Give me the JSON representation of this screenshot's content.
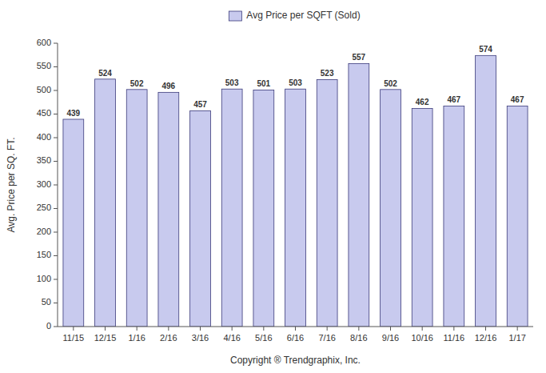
{
  "chart_data": {
    "type": "bar",
    "categories": [
      "11/15",
      "12/15",
      "1/16",
      "2/16",
      "3/16",
      "4/16",
      "5/16",
      "6/16",
      "7/16",
      "8/16",
      "9/16",
      "10/16",
      "11/16",
      "12/16",
      "1/17"
    ],
    "series": [
      {
        "name": "Avg Price per SQFT (Sold)",
        "color": "#c8caee",
        "values": [
          439,
          524,
          502,
          496,
          457,
          503,
          501,
          503,
          523,
          557,
          502,
          462,
          467,
          574,
          467
        ]
      }
    ],
    "xlabel": "Copyright ® Trendgraphix, Inc.",
    "ylabel": "Avg. Price per SQ. FT.",
    "ylim": [
      0,
      600
    ],
    "yticks": [
      0,
      50,
      100,
      150,
      200,
      250,
      300,
      350,
      400,
      450,
      500,
      550,
      600
    ],
    "grid": false,
    "legend": "top",
    "data_labels": true
  }
}
